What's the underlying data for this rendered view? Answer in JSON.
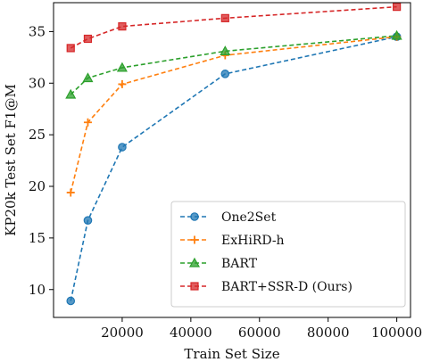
{
  "chart_data": {
    "type": "line",
    "xlabel": "Train Set Size",
    "ylabel": "KP20k Test Set F1@M",
    "xlim": [
      0,
      104000
    ],
    "ylim": [
      7.3,
      37.8
    ],
    "xticks": [
      20000,
      40000,
      60000,
      80000,
      100000
    ],
    "xtick_labels": [
      "20000",
      "40000",
      "60000",
      "80000",
      "100000"
    ],
    "yticks": [
      10,
      15,
      20,
      25,
      30,
      35
    ],
    "ytick_labels": [
      "10",
      "15",
      "20",
      "25",
      "30",
      "35"
    ],
    "grid": false,
    "legend_position": "lower-right",
    "series": [
      {
        "name": "One2Set",
        "color": "#1f77b4",
        "marker": "circle",
        "x": [
          5000,
          10000,
          20000,
          50000,
          100000
        ],
        "y": [
          8.9,
          16.7,
          23.8,
          30.9,
          34.5
        ]
      },
      {
        "name": "ExHiRD-h",
        "color": "#ff7f0e",
        "marker": "plus",
        "x": [
          5000,
          10000,
          20000,
          50000,
          100000
        ],
        "y": [
          19.4,
          26.2,
          29.9,
          32.7,
          34.5
        ]
      },
      {
        "name": "BART",
        "color": "#2ca02c",
        "marker": "triangle",
        "x": [
          5000,
          10000,
          20000,
          50000,
          100000
        ],
        "y": [
          28.9,
          30.5,
          31.5,
          33.1,
          34.6
        ]
      },
      {
        "name": "BART+SSR-D (Ours)",
        "color": "#d62728",
        "marker": "square",
        "x": [
          5000,
          10000,
          20000,
          50000,
          100000
        ],
        "y": [
          33.4,
          34.3,
          35.5,
          36.3,
          37.4
        ]
      }
    ]
  }
}
